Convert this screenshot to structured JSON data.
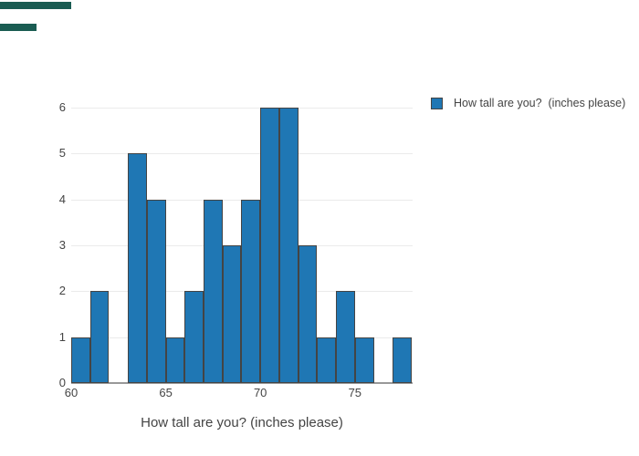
{
  "chart_data": {
    "type": "bar",
    "subtype": "histogram",
    "title": "",
    "xlabel": "How tall are you?  (inches please)",
    "ylabel": "",
    "legend_label": "How tall are you?  (inches please)",
    "legend_position": "top-right",
    "grid": true,
    "bin_width": 1,
    "bin_starts": [
      60,
      61,
      62,
      63,
      64,
      65,
      66,
      67,
      68,
      69,
      70,
      71,
      72,
      73,
      74,
      75,
      76,
      77
    ],
    "counts": [
      1,
      2,
      0,
      5,
      4,
      1,
      2,
      4,
      3,
      4,
      6,
      6,
      3,
      1,
      2,
      1,
      0,
      1
    ],
    "x_tick_values": [
      60,
      65,
      70,
      75
    ],
    "x_tick_labels": [
      "60",
      "65",
      "70",
      "75"
    ],
    "y_tick_values": [
      0,
      1,
      2,
      3,
      4,
      5,
      6
    ],
    "y_tick_labels": [
      "0",
      "1",
      "2",
      "3",
      "4",
      "5",
      "6"
    ],
    "xlim": [
      60,
      78.05
    ],
    "ylim": [
      0,
      6.46
    ],
    "colors": {
      "bar_fill": "#1f77b4",
      "bar_border": "#444444",
      "gridline": "#ebebeb",
      "zeroline": "#999999",
      "text": "#444444",
      "background": "#ffffff"
    }
  },
  "artifacts": {
    "corner_bars": [
      {
        "x": 0,
        "y": 2,
        "w": 78,
        "h": 8,
        "color": "#1a5c52"
      },
      {
        "x": 0,
        "y": 26,
        "w": 40,
        "h": 8,
        "color": "#1a5c52"
      }
    ]
  }
}
